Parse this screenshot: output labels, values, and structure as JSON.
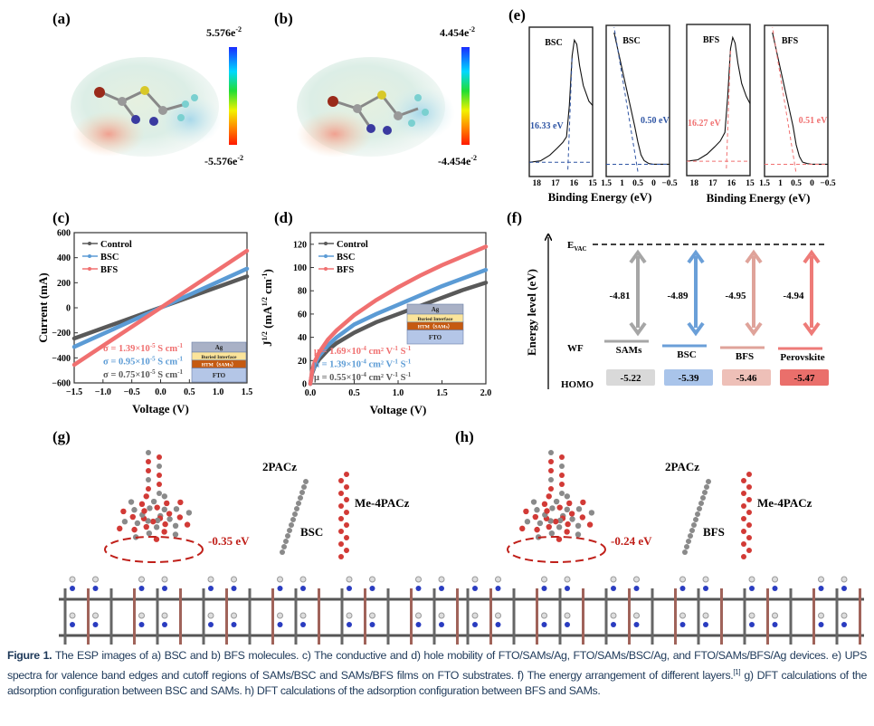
{
  "panels": {
    "a": "(a)",
    "b": "(b)",
    "c": "(c)",
    "d": "(d)",
    "e": "(e)",
    "f": "(f)",
    "g": "(g)",
    "h": "(h)"
  },
  "esp": {
    "a": {
      "max": "5.576e",
      "min": "-5.576e",
      "exp": "-2"
    },
    "b": {
      "max": "4.454e",
      "min": "-4.454e",
      "exp": "-2"
    }
  },
  "chart_data": [
    {
      "id": "c",
      "type": "line",
      "xlabel": "Voltage (V)",
      "ylabel": "Current (mA)",
      "xlim": [
        -1.5,
        1.5
      ],
      "ylim": [
        -600,
        600
      ],
      "xticks": [
        "−1.5",
        "−1.0",
        "−0.5",
        "0.0",
        "0.5",
        "1.0",
        "1.5"
      ],
      "yticks": [
        "−600",
        "−400",
        "−200",
        "0",
        "200",
        "400",
        "600"
      ],
      "legend_position": "top-left",
      "x": [
        -1.5,
        1.5
      ],
      "series": [
        {
          "name": "Control",
          "color": "#595959",
          "values": [
            -245,
            250
          ]
        },
        {
          "name": "BSC",
          "color": "#5b9bd5",
          "values": [
            -312,
            312
          ]
        },
        {
          "name": "BFS",
          "color": "#f07070",
          "values": [
            -455,
            455
          ]
        }
      ],
      "annotations": [
        {
          "prefix": "σ = 1.39×10",
          "exp": "-5",
          "suffix": " S cm",
          "exp2": "-1",
          "color": "#f07070"
        },
        {
          "prefix": "σ = 0.95×10",
          "exp": "-5",
          "suffix": " S cm",
          "exp2": "-1",
          "color": "#5b9bd5"
        },
        {
          "prefix": "σ = 0.75×10",
          "exp": "-5",
          "suffix": " S cm",
          "exp2": "-1",
          "color": "#595959"
        }
      ]
    },
    {
      "id": "d",
      "type": "line",
      "xlabel": "Voltage (V)",
      "ylabel": "J",
      "ylabel_sup": "1/2",
      "ylabel_unit": " (mA",
      "ylabel_unit_sup": "1/2",
      "ylabel_unit_end": " cm",
      "ylabel_unit_end_sup": "-1",
      "ylabel_close": ")",
      "xlim": [
        0,
        2.0
      ],
      "ylim": [
        0,
        130
      ],
      "xticks": [
        "0.0",
        "0.5",
        "1.0",
        "1.5",
        "2.0"
      ],
      "yticks": [
        "0",
        "20",
        "40",
        "60",
        "80",
        "100",
        "120"
      ],
      "legend_position": "top-left",
      "x": [
        0,
        0.02,
        0.05,
        0.1,
        0.2,
        0.3,
        0.5,
        0.75,
        1.0,
        1.25,
        1.5,
        1.75,
        2.0
      ],
      "series": [
        {
          "name": "Control",
          "color": "#595959",
          "values": [
            0,
            9,
            15,
            21,
            29,
            35,
            44,
            53,
            60,
            67,
            74,
            81,
            87
          ]
        },
        {
          "name": "BSC",
          "color": "#5b9bd5",
          "values": [
            0,
            10,
            17,
            24,
            33,
            40,
            51,
            60,
            68,
            76,
            84,
            91,
            98
          ]
        },
        {
          "name": "BFS",
          "color": "#f07070",
          "values": [
            0,
            11,
            19,
            27,
            38,
            46,
            59,
            72,
            83,
            93,
            102,
            110,
            118
          ]
        }
      ],
      "annotations": [
        {
          "prefix": "μ = 1.69×10",
          "exp": "-4",
          "suffix": " cm² V",
          "exp2": "-1",
          "tail": " S",
          "exp3": "-1",
          "color": "#f07070"
        },
        {
          "prefix": "μ = 1.39×10",
          "exp": "-4",
          "suffix": " cm² V",
          "exp2": "-1",
          "tail": " S",
          "exp3": "-1",
          "color": "#5b9bd5"
        },
        {
          "prefix": "μ = 0.55×10",
          "exp": "-4",
          "suffix": " cm² V",
          "exp2": "-1",
          "tail": " S",
          "exp3": "-1",
          "color": "#595959"
        }
      ]
    },
    {
      "id": "e",
      "type": "line",
      "xlabel": "Binding Energy (eV)",
      "subplots": [
        {
          "label": "BSC",
          "xlim": [
            18.4,
            15
          ],
          "xticks": [
            "18",
            "17",
            "16",
            "15"
          ],
          "tickvals": [
            18,
            17,
            16,
            15
          ],
          "fit_color": "#2f55a4",
          "edge": 16.33,
          "edge_label": "16.33 eV",
          "points": [
            [
              18.4,
              0.1
            ],
            [
              17.8,
              0.11
            ],
            [
              17.3,
              0.15
            ],
            [
              16.9,
              0.2
            ],
            [
              16.6,
              0.24
            ],
            [
              16.4,
              0.28
            ],
            [
              16.25,
              0.5
            ],
            [
              16.1,
              0.85
            ],
            [
              15.98,
              0.96
            ],
            [
              15.85,
              0.93
            ],
            [
              15.7,
              0.78
            ],
            [
              15.5,
              0.64
            ],
            [
              15.2,
              0.53
            ],
            [
              15,
              0.5
            ]
          ]
        },
        {
          "label": "BSC",
          "xlim": [
            1.5,
            -0.5
          ],
          "xticks": [
            "1.5",
            "1",
            "0.5",
            "0",
            "−0.5"
          ],
          "tickvals": [
            1.5,
            1,
            0.5,
            0,
            -0.5
          ],
          "fit_color": "#2f55a4",
          "edge": 0.5,
          "edge_label": "0.50 eV",
          "points": [
            [
              1.25,
              1.0
            ],
            [
              1.0,
              0.75
            ],
            [
              0.8,
              0.55
            ],
            [
              0.6,
              0.35
            ],
            [
              0.5,
              0.24
            ],
            [
              0.4,
              0.15
            ],
            [
              0.3,
              0.11
            ],
            [
              0.15,
              0.09
            ],
            [
              0,
              0.085
            ],
            [
              -0.5,
              0.085
            ]
          ]
        },
        {
          "label": "BFS",
          "xlim": [
            18.4,
            15
          ],
          "xticks": [
            "18",
            "17",
            "16",
            "15"
          ],
          "tickvals": [
            18,
            17,
            16,
            15
          ],
          "fit_color": "#f07070",
          "edge": 16.27,
          "edge_label": "16.27 eV",
          "points": [
            [
              18.4,
              0.1
            ],
            [
              17.8,
              0.11
            ],
            [
              17.3,
              0.15
            ],
            [
              16.9,
              0.2
            ],
            [
              16.6,
              0.24
            ],
            [
              16.35,
              0.3
            ],
            [
              16.2,
              0.55
            ],
            [
              16.05,
              0.88
            ],
            [
              15.93,
              0.96
            ],
            [
              15.8,
              0.92
            ],
            [
              15.65,
              0.78
            ],
            [
              15.45,
              0.64
            ],
            [
              15.2,
              0.55
            ],
            [
              15,
              0.5
            ]
          ]
        },
        {
          "label": "BFS",
          "xlim": [
            1.5,
            -0.5
          ],
          "xticks": [
            "1.5",
            "1",
            "0.5",
            "0",
            "−0.5"
          ],
          "tickvals": [
            1.5,
            1,
            0.5,
            0,
            -0.5
          ],
          "fit_color": "#f07070",
          "edge": 0.51,
          "edge_label": "0.51 eV",
          "points": [
            [
              1.25,
              1.0
            ],
            [
              1.0,
              0.75
            ],
            [
              0.8,
              0.55
            ],
            [
              0.6,
              0.35
            ],
            [
              0.5,
              0.22
            ],
            [
              0.4,
              0.14
            ],
            [
              0.3,
              0.1
            ],
            [
              0.15,
              0.09
            ],
            [
              0,
              0.085
            ],
            [
              -0.5,
              0.085
            ]
          ]
        }
      ]
    }
  ],
  "energy": {
    "axis_label": "Energy level (eV)",
    "evac": "E",
    "evac_sub": "VAC",
    "wf_label": "WF",
    "homo_label": "HOMO",
    "layers": [
      {
        "name": "SAMs",
        "wf": "-4.81",
        "homo": "-5.22",
        "color": "#a6a6a6",
        "box": "#d9d9d9"
      },
      {
        "name": "BSC",
        "wf": "-4.89",
        "homo": "-5.39",
        "color": "#6a9fd8",
        "box": "#a9c4ea"
      },
      {
        "name": "BFS",
        "wf": "-4.95",
        "homo": "-5.46",
        "color": "#dfa39a",
        "box": "#eec0b8"
      },
      {
        "name": "Perovskite",
        "wf": "-4.94",
        "homo": "-5.47",
        "color": "#ee7b78",
        "box": "#ea6f6b"
      }
    ]
  },
  "inset": {
    "layers": [
      "Ag",
      "Buried Interface",
      "HTM（SAMs）",
      "FTO"
    ],
    "colors": [
      "#a9b1c6",
      "#fbe49a",
      "#c55a11",
      "#b4c6e7"
    ]
  },
  "dft": {
    "g": {
      "energy": "-0.35 eV",
      "mol1": "2PACz",
      "mol2": "Me-4PACz",
      "mol3": "BSC"
    },
    "h": {
      "energy": "-0.24 eV",
      "mol1": "2PACz",
      "mol2": "Me-4PACz",
      "mol3": "BFS"
    }
  },
  "caption": {
    "label": "Figure 1.",
    "text1": " The ESP images of a) BSC and b) BFS molecules. c) The conductive and d) hole mobility of FTO/SAMs/Ag, FTO/SAMs/BSC/Ag, and FTO/SAMs/BFS/Ag devices. e) UPS spectra for valence band edges and cutoff regions of SAMs/BSC and SAMs/BFS films on FTO substrates. f) The energy arrangement of different layers.",
    "ref": "[1]",
    "text2": " g) DFT calculations of the adsorption configuration between BSC and SAMs. h) DFT calculations of the adsorption configuration between BFS and SAMs."
  }
}
